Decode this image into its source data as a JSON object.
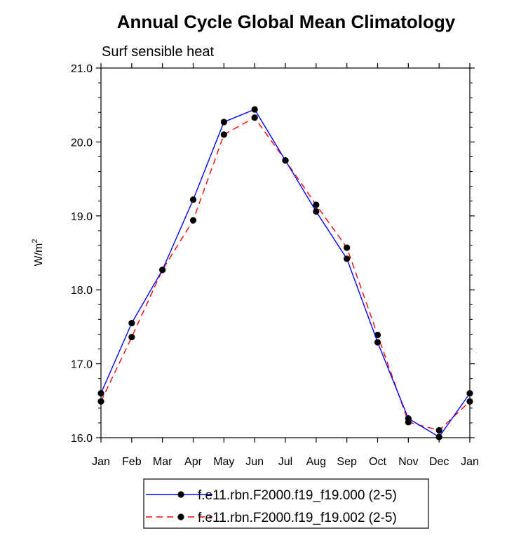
{
  "chart_data": {
    "type": "line",
    "title": "Annual Cycle Global Mean Climatology",
    "subtitle": "Surf sensible heat",
    "ylabel_base": "W/m",
    "ylabel_sup": "2",
    "xlabel": "",
    "ylim": [
      16.0,
      21.0
    ],
    "yticks": [
      "16.0",
      "17.0",
      "18.0",
      "19.0",
      "20.0",
      "21.0"
    ],
    "categories": [
      "Jan",
      "Feb",
      "Mar",
      "Apr",
      "May",
      "Jun",
      "Jul",
      "Aug",
      "Sep",
      "Oct",
      "Nov",
      "Dec",
      "Jan"
    ],
    "series": [
      {
        "name": "f.e11.rbn.F2000.f19_f19.000 (2-5)",
        "color": "#0000ff",
        "dash": "solid",
        "values": [
          16.6,
          17.55,
          18.27,
          19.22,
          20.27,
          20.44,
          19.75,
          19.06,
          18.42,
          17.29,
          16.26,
          16.01,
          16.6
        ]
      },
      {
        "name": "f.e11.rbn.F2000.f19_f19.002 (2-5)",
        "color": "#ff0000",
        "dash": "dashed",
        "values": [
          16.49,
          17.36,
          18.27,
          18.94,
          20.1,
          20.33,
          19.75,
          19.15,
          18.57,
          17.39,
          16.21,
          16.1,
          16.49
        ]
      }
    ],
    "legend_position": "bottom-center"
  }
}
